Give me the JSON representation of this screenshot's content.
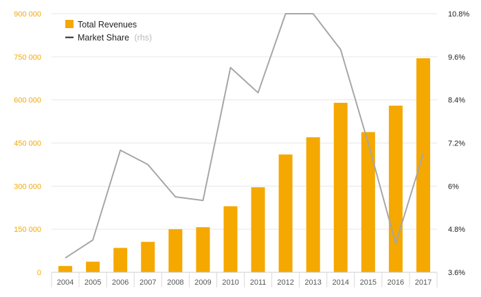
{
  "chart_data": {
    "type": "bar",
    "categories": [
      "2004",
      "2005",
      "2006",
      "2007",
      "2008",
      "2009",
      "2010",
      "2011",
      "2012",
      "2013",
      "2014",
      "2015",
      "2016",
      "2017"
    ],
    "series": [
      {
        "name": "Total Revenues",
        "type": "bar",
        "axis": "left",
        "color": "#F5A800",
        "values": [
          22000,
          37000,
          85000,
          106000,
          150000,
          157000,
          230000,
          296000,
          410000,
          470000,
          590000,
          488000,
          580000,
          745000
        ]
      },
      {
        "name": "Market Share",
        "name_suffix": "(rhs)",
        "type": "line",
        "axis": "right",
        "color": "#A6A6A6",
        "values": [
          4.0,
          4.5,
          7.0,
          6.6,
          5.7,
          5.6,
          9.3,
          8.6,
          10.8,
          10.8,
          9.8,
          7.2,
          4.4,
          6.9
        ]
      }
    ],
    "y_left": {
      "min": 0,
      "max": 900000,
      "ticks": [
        0,
        150000,
        300000,
        450000,
        600000,
        750000,
        900000
      ],
      "tick_labels": [
        "0",
        "150 000",
        "300 000",
        "450 000",
        "600 000",
        "750 000",
        "900 000"
      ],
      "color": "#F5A800"
    },
    "y_right": {
      "min": 3.6,
      "max": 10.8,
      "ticks": [
        3.6,
        4.8,
        6.0,
        7.2,
        8.4,
        9.6,
        10.8
      ],
      "tick_labels": [
        "3.6%",
        "4.8%",
        "6%",
        "7.2%",
        "8.4%",
        "9.6%",
        "10.8%"
      ],
      "color": "#222222"
    },
    "grid": true,
    "legend_position": "top-left"
  }
}
